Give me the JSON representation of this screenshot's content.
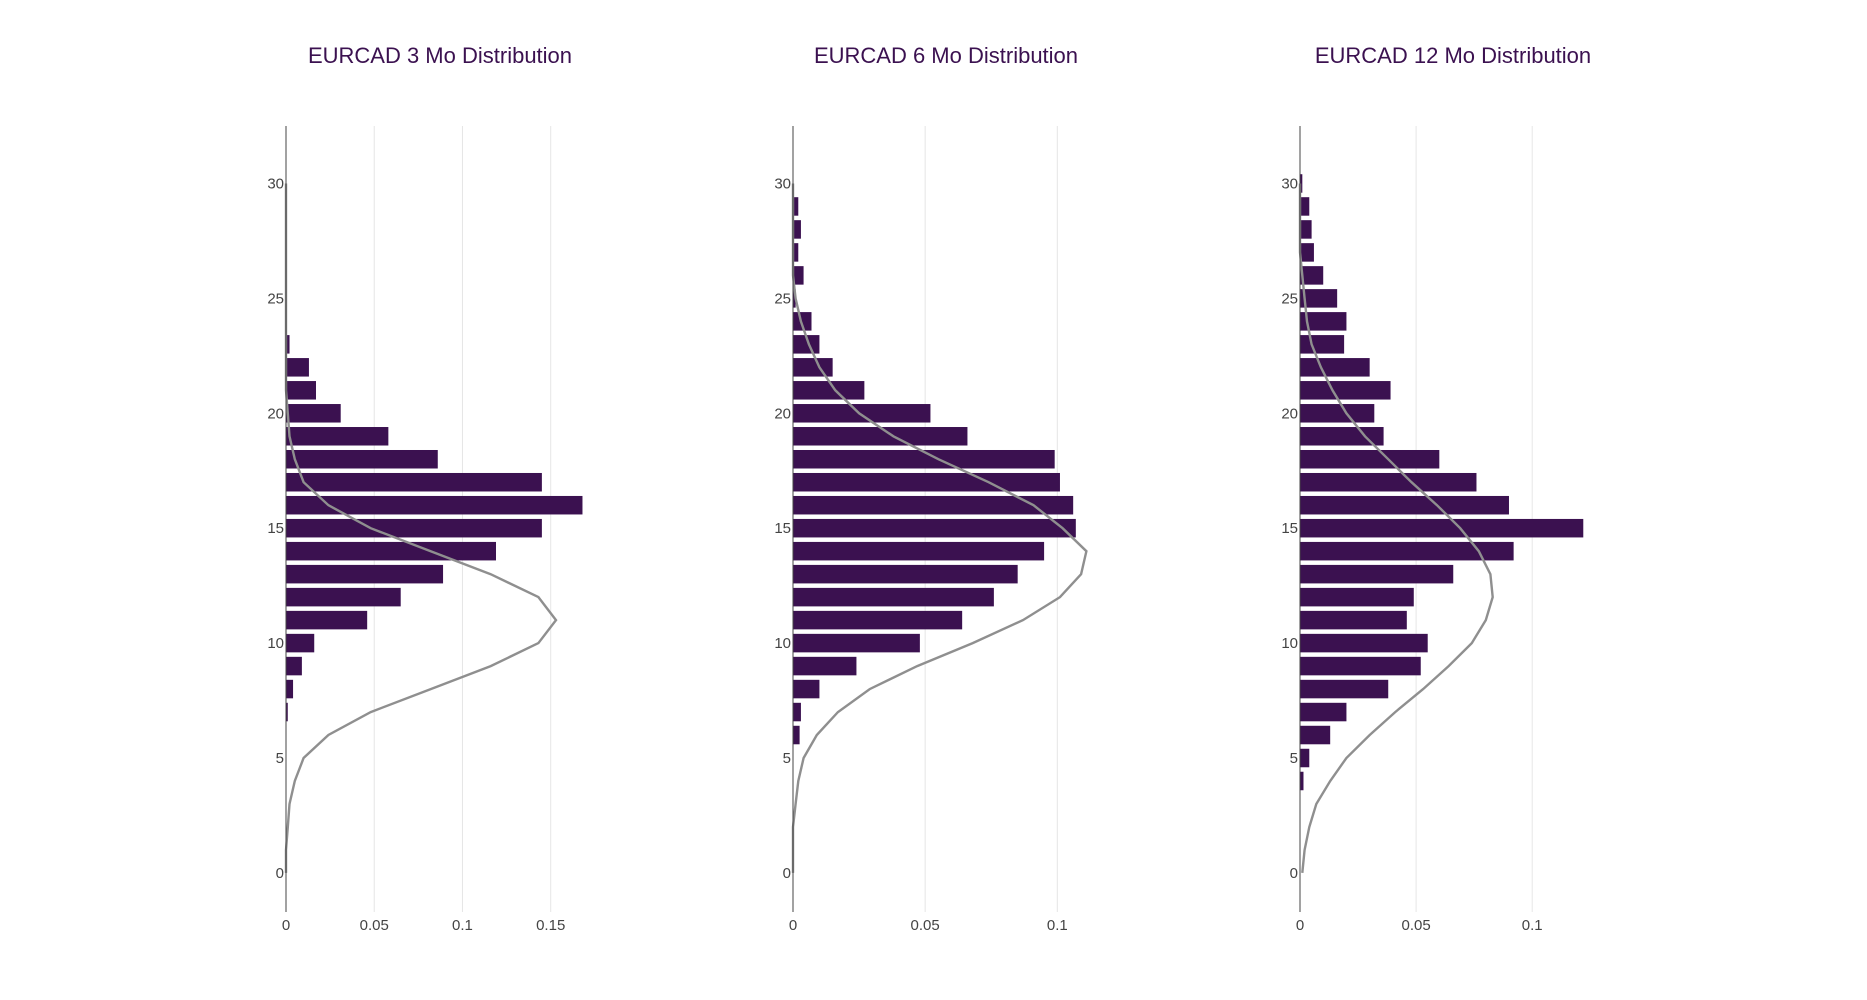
{
  "colors": {
    "bar": "#3b1150",
    "curve": "#8f8f8f",
    "title": "#3b1150",
    "grid": "#e6e6e6",
    "axis": "#444444"
  },
  "chart_data": [
    {
      "type": "bar",
      "orientation": "horizontal",
      "title": "EURCAD 3 Mo Distribution",
      "xlabel": "",
      "ylabel": "",
      "xlim": [
        0,
        0.17
      ],
      "ylim": [
        -1.7,
        32.5
      ],
      "xticks": [
        0,
        0.05,
        0.1,
        0.15
      ],
      "xtick_labels": [
        "0",
        "0.05",
        "0.1",
        "0.15"
      ],
      "yticks": [
        0,
        5,
        10,
        15,
        20,
        25,
        30
      ],
      "ytick_labels": [
        "0",
        "5",
        "10",
        "15",
        "20",
        "25",
        "30"
      ],
      "grid": true,
      "bars": {
        "y": [
          7,
          8,
          9,
          10,
          11,
          12,
          13,
          14,
          15,
          16,
          17,
          18,
          19,
          20,
          21,
          22,
          23
        ],
        "values": [
          0.001,
          0.004,
          0.009,
          0.016,
          0.046,
          0.065,
          0.089,
          0.119,
          0.145,
          0.168,
          0.145,
          0.086,
          0.058,
          0.031,
          0.017,
          0.013,
          0.002
        ]
      },
      "curve": {
        "x": [
          0.0,
          0.0,
          0.001,
          0.002,
          0.005,
          0.01,
          0.024,
          0.048,
          0.082,
          0.116,
          0.143,
          0.153,
          0.143,
          0.116,
          0.082,
          0.048,
          0.024,
          0.01,
          0.005,
          0.002,
          0.001,
          0.0,
          0.0,
          0.0,
          0.0,
          0.0,
          0.0,
          0.0,
          0.0,
          0.0,
          0.0
        ],
        "y": [
          0,
          1,
          2,
          3,
          4,
          5,
          6,
          7,
          8,
          9,
          10,
          11,
          12,
          13,
          14,
          15,
          16,
          17,
          18,
          19,
          20,
          21,
          22,
          23,
          24,
          25,
          26,
          27,
          28,
          29,
          30
        ]
      }
    },
    {
      "type": "bar",
      "orientation": "horizontal",
      "title": "EURCAD 6 Mo Distribution",
      "xlabel": "",
      "ylabel": "",
      "xlim": [
        0,
        0.1135
      ],
      "ylim": [
        -1.7,
        32.5
      ],
      "xticks": [
        0,
        0.05,
        0.1
      ],
      "xtick_labels": [
        "0",
        "0.05",
        "0.1"
      ],
      "yticks": [
        0,
        5,
        10,
        15,
        20,
        25,
        30
      ],
      "ytick_labels": [
        "0",
        "5",
        "10",
        "15",
        "20",
        "25",
        "30"
      ],
      "grid": true,
      "bars": {
        "y": [
          6,
          7,
          8,
          9,
          10,
          11,
          12,
          13,
          14,
          15,
          16,
          17,
          18,
          19,
          20,
          21,
          22,
          23,
          24,
          25,
          26,
          27,
          28,
          29
        ],
        "values": [
          0.0025,
          0.003,
          0.01,
          0.024,
          0.048,
          0.064,
          0.076,
          0.085,
          0.095,
          0.107,
          0.106,
          0.101,
          0.099,
          0.066,
          0.052,
          0.027,
          0.015,
          0.01,
          0.007,
          0.001,
          0.004,
          0.002,
          0.003,
          0.002
        ]
      },
      "curve": {
        "x": [
          0.0,
          0.0,
          0.0,
          0.001,
          0.002,
          0.004,
          0.009,
          0.017,
          0.029,
          0.047,
          0.068,
          0.087,
          0.101,
          0.109,
          0.111,
          0.102,
          0.091,
          0.074,
          0.055,
          0.038,
          0.025,
          0.016,
          0.01,
          0.006,
          0.003,
          0.001,
          0.0,
          0.0,
          0.0,
          0.0,
          0.0
        ],
        "y": [
          0,
          1,
          2,
          3,
          4,
          5,
          6,
          7,
          8,
          9,
          10,
          11,
          12,
          13,
          14,
          15,
          16,
          17,
          18,
          19,
          20,
          21,
          22,
          23,
          24,
          25,
          26,
          27,
          28,
          29,
          30
        ]
      }
    },
    {
      "type": "bar",
      "orientation": "horizontal",
      "title": "EURCAD 12 Mo Distribution",
      "xlabel": "",
      "ylabel": "",
      "xlim": [
        0,
        0.1292
      ],
      "ylim": [
        -1.7,
        32.5
      ],
      "xticks": [
        0,
        0.05,
        0.1
      ],
      "xtick_labels": [
        "0",
        "0.05",
        "0.1"
      ],
      "yticks": [
        0,
        5,
        10,
        15,
        20,
        25,
        30
      ],
      "ytick_labels": [
        "0",
        "5",
        "10",
        "15",
        "20",
        "25",
        "30"
      ],
      "grid": true,
      "bars": {
        "y": [
          4,
          5,
          6,
          7,
          8,
          9,
          10,
          11,
          12,
          13,
          14,
          15,
          16,
          17,
          18,
          19,
          20,
          21,
          22,
          23,
          24,
          25,
          26,
          27,
          28,
          29,
          30
        ],
        "values": [
          0.0015,
          0.004,
          0.013,
          0.02,
          0.038,
          0.052,
          0.055,
          0.046,
          0.049,
          0.066,
          0.092,
          0.122,
          0.09,
          0.076,
          0.06,
          0.036,
          0.032,
          0.039,
          0.03,
          0.019,
          0.02,
          0.016,
          0.01,
          0.006,
          0.005,
          0.004,
          0.001
        ]
      },
      "curve": {
        "x": [
          0.001,
          0.002,
          0.004,
          0.007,
          0.013,
          0.02,
          0.03,
          0.041,
          0.053,
          0.064,
          0.074,
          0.08,
          0.083,
          0.082,
          0.077,
          0.069,
          0.059,
          0.048,
          0.038,
          0.028,
          0.02,
          0.014,
          0.009,
          0.005,
          0.003,
          0.002,
          0.001,
          0.0,
          0.0,
          0.0,
          0.0
        ],
        "y": [
          0,
          1,
          2,
          3,
          4,
          5,
          6,
          7,
          8,
          9,
          10,
          11,
          12,
          13,
          14,
          15,
          16,
          17,
          18,
          19,
          20,
          21,
          22,
          23,
          24,
          25,
          26,
          27,
          28,
          29,
          30
        ]
      }
    }
  ]
}
